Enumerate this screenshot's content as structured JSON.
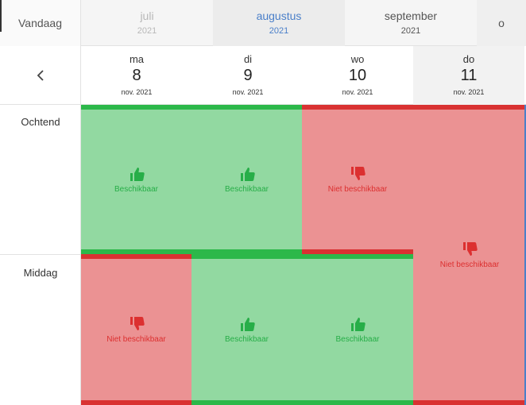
{
  "toolbar": {
    "today_label": "Vandaag"
  },
  "months": [
    {
      "name": "juli",
      "year": "2021",
      "state": "past"
    },
    {
      "name": "augustus",
      "year": "2021",
      "state": "selected"
    },
    {
      "name": "september",
      "year": "2021",
      "state": "normal"
    },
    {
      "name": "o",
      "year": "",
      "state": "partial"
    }
  ],
  "days": [
    {
      "weekday": "ma",
      "day": "8",
      "month": "nov. 2021"
    },
    {
      "weekday": "di",
      "day": "9",
      "month": "nov. 2021"
    },
    {
      "weekday": "wo",
      "day": "10",
      "month": "nov. 2021"
    },
    {
      "weekday": "do",
      "day": "11",
      "month": "nov. 2021"
    }
  ],
  "slots": {
    "morning": "Ochtend",
    "afternoon": "Middag"
  },
  "status_labels": {
    "available": "Beschikbaar",
    "unavailable": "Niet beschikbaar"
  },
  "availability": {
    "morning": [
      "available",
      "available",
      "unavailable",
      "unavailable"
    ],
    "afternoon": [
      "unavailable",
      "available",
      "available",
      "unavailable"
    ]
  },
  "colors": {
    "available_fill": "#92d9a1",
    "available_accent": "#2cb84a",
    "unavailable_fill": "#eb9293",
    "unavailable_accent": "#d93232",
    "selected_month": "#4a7fc9"
  },
  "icons": {
    "available": "thumbs-up-icon",
    "unavailable": "thumbs-down-icon",
    "previous": "chevron-left-icon"
  }
}
